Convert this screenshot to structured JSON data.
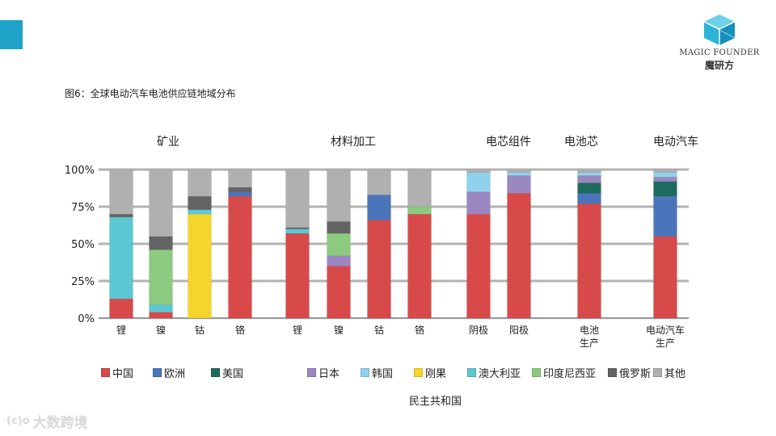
{
  "figure_title": "图6：全球电动汽车电池供应链地域分布",
  "logo": {
    "en": "MAGIC FOUNDER",
    "cn": "魔研方"
  },
  "watermark": {
    "mark": "(c)o",
    "text": "大数跨境"
  },
  "colors": {
    "china": "#d84a4a",
    "europe": "#4a75bb",
    "usa": "#1d6b5c",
    "japan": "#9b87c2",
    "korea": "#8fd2ef",
    "congo": "#f5d52b",
    "australia": "#5cc8d4",
    "indonesia": "#8ccb7f",
    "russia": "#636363",
    "other": "#b0b0b0",
    "accent": "#1fa3c8",
    "gridline": "#9a9a9a"
  },
  "chart_data": {
    "type": "bar",
    "stacked": true,
    "title": "图6：全球电动汽车电池供应链地域分布",
    "ylim": [
      0,
      100
    ],
    "yticks": [
      "0%",
      "25%",
      "50%",
      "75%",
      "100%"
    ],
    "groups": [
      {
        "label": "矿业",
        "categories": [
          "锂",
          "镍",
          "钴",
          "铬"
        ]
      },
      {
        "label": "材料加工",
        "categories": [
          "锂",
          "镍",
          "钴",
          "铬"
        ]
      },
      {
        "label": "电芯组件",
        "categories": [
          "阴极",
          "阳极"
        ]
      },
      {
        "label": "电池芯",
        "categories": [
          "电池\n生产"
        ]
      },
      {
        "label": "电动汽车",
        "categories": [
          "电动汽车\n生产"
        ]
      }
    ],
    "categories": [
      "锂",
      "镍",
      "钴",
      "铬",
      "锂",
      "镍",
      "钴",
      "铬",
      "阴极",
      "阳极",
      "电池\n生产",
      "电动汽车\n生产"
    ],
    "series": [
      {
        "name": "中国",
        "key": "china",
        "values": [
          13,
          4,
          0,
          82,
          57,
          35,
          66,
          70,
          70,
          84,
          77,
          55
        ]
      },
      {
        "name": "欧洲",
        "key": "europe",
        "values": [
          0,
          0,
          0,
          3,
          0,
          0,
          17,
          0,
          0,
          0,
          7,
          27
        ]
      },
      {
        "name": "美国",
        "key": "usa",
        "values": [
          0,
          0,
          0,
          0,
          0,
          0,
          0,
          0,
          0,
          0,
          7,
          10
        ]
      },
      {
        "name": "日本",
        "key": "japan",
        "values": [
          0,
          0,
          0,
          0,
          0,
          7,
          0,
          0,
          15,
          12,
          5,
          3
        ]
      },
      {
        "name": "韩国",
        "key": "korea",
        "values": [
          0,
          0,
          0,
          0,
          0,
          0,
          0,
          0,
          13,
          2,
          2,
          3
        ]
      },
      {
        "name": "刚果",
        "key": "congo",
        "values": [
          0,
          0,
          70,
          0,
          0,
          0,
          0,
          0,
          0,
          0,
          0,
          0
        ]
      },
      {
        "name": "澳大利亚",
        "key": "australia",
        "values": [
          55,
          5,
          3,
          0,
          3,
          0,
          0,
          0,
          0,
          0,
          0,
          0
        ]
      },
      {
        "name": "印度尼西亚",
        "key": "indonesia",
        "values": [
          0,
          37,
          0,
          0,
          0,
          15,
          0,
          5,
          0,
          0,
          0,
          0
        ]
      },
      {
        "name": "俄罗斯",
        "key": "russia",
        "values": [
          2,
          9,
          9,
          3,
          1,
          8,
          0,
          0,
          0,
          0,
          0,
          0
        ]
      },
      {
        "name": "其他",
        "key": "other",
        "values": [
          30,
          45,
          18,
          12,
          39,
          35,
          17,
          25,
          2,
          2,
          2,
          2
        ]
      }
    ],
    "legend": {
      "row1": [
        "中国",
        "欧洲",
        "美国",
        "日本",
        "韩国",
        "刚果",
        "澳大利亚",
        "印度尼西亚",
        "俄罗斯",
        "其他"
      ],
      "row2": "民主共和国"
    }
  }
}
